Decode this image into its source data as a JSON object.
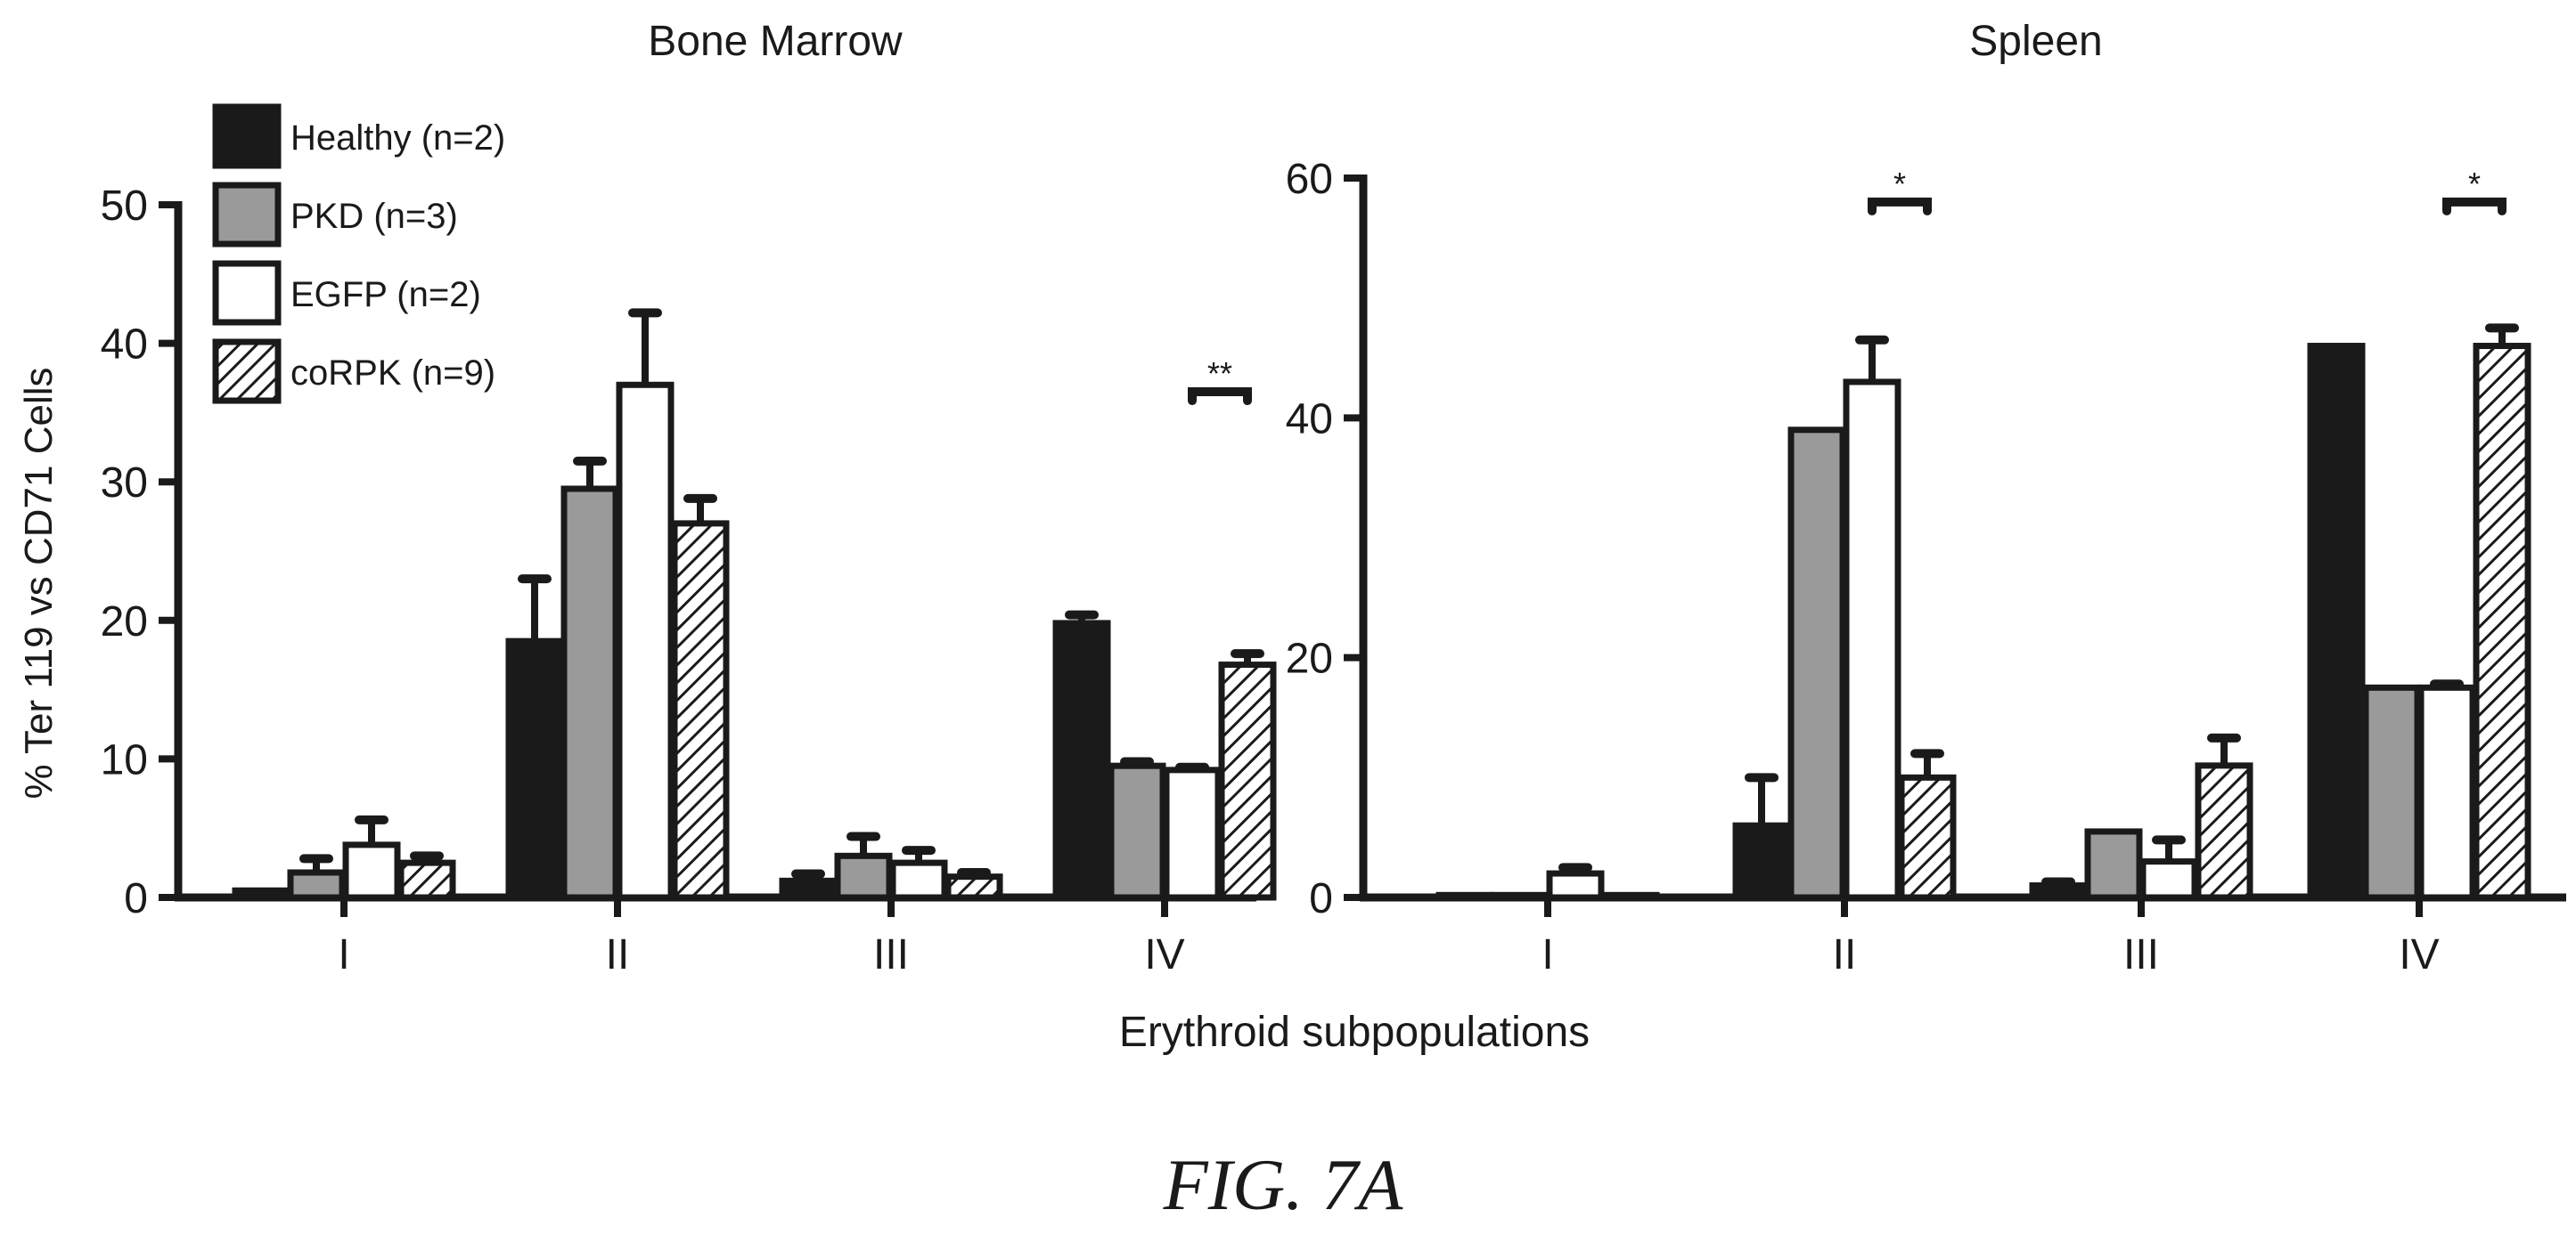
{
  "figure_caption": "FIG. 7A",
  "shared_ylabel": "% Ter 119 vs CD71  Cells",
  "shared_xlabel": "Erythroid subpopulations",
  "legend": [
    {
      "label": "Healthy  (n=2)",
      "fill": "solid-black"
    },
    {
      "label": "PKD  (n=3)",
      "fill": "gray"
    },
    {
      "label": "EGFP  (n=2)",
      "fill": "white"
    },
    {
      "label": "coRPK  (n=9)",
      "fill": "hatched"
    }
  ],
  "colors": {
    "healthy": "#1a1a1a",
    "pkd": "#9a9a9a",
    "egfp": "#ffffff",
    "outline": "#1a1a1a"
  },
  "chart_data": [
    {
      "type": "bar",
      "title": "Bone Marrow",
      "categories": [
        "I",
        "II",
        "III",
        "IV"
      ],
      "ylim": [
        0,
        50
      ],
      "yticks": [
        "0",
        "10",
        "20",
        "30",
        "40",
        "50"
      ],
      "series": [
        {
          "name": "Healthy  (n=2)",
          "values": [
            0.5,
            18.5,
            1.2,
            19.8
          ],
          "errors": [
            0,
            4.5,
            0.5,
            0.6
          ]
        },
        {
          "name": "PKD  (n=3)",
          "values": [
            1.8,
            29.5,
            3.0,
            9.5
          ],
          "errors": [
            1.0,
            2.0,
            1.4,
            0.3
          ]
        },
        {
          "name": "EGFP  (n=2)",
          "values": [
            3.8,
            37.0,
            2.5,
            9.2
          ],
          "errors": [
            1.8,
            5.2,
            0.9,
            0.2
          ]
        },
        {
          "name": "coRPK  (n=9)",
          "values": [
            2.5,
            27.0,
            1.5,
            16.8
          ],
          "errors": [
            0.5,
            1.8,
            0.3,
            0.8
          ]
        }
      ],
      "annotations": [
        {
          "text": "**",
          "category": "IV",
          "series": [
            2,
            3
          ],
          "y": 36.5
        }
      ]
    },
    {
      "type": "bar",
      "title": "Spleen",
      "categories": [
        "I",
        "II",
        "III",
        "IV"
      ],
      "ylim": [
        0,
        60
      ],
      "yticks": [
        "0",
        "20",
        "40",
        "60"
      ],
      "series": [
        {
          "name": "Healthy  (n=2)",
          "values": [
            0.2,
            6.0,
            1.0,
            46.0
          ],
          "errors": [
            0,
            4.0,
            0.3,
            0
          ]
        },
        {
          "name": "PKD  (n=3)",
          "values": [
            0.2,
            39.0,
            5.5,
            17.5
          ],
          "errors": [
            0,
            0,
            0,
            0
          ]
        },
        {
          "name": "EGFP  (n=2)",
          "values": [
            2.0,
            43.0,
            3.0,
            17.5
          ],
          "errors": [
            0.5,
            3.5,
            1.8,
            0.3
          ]
        },
        {
          "name": "coRPK  (n=9)",
          "values": [
            0.2,
            10.0,
            11.0,
            46.0
          ],
          "errors": [
            0,
            2.0,
            2.3,
            1.5
          ]
        }
      ],
      "annotations": [
        {
          "text": "*",
          "category": "II",
          "series": [
            2,
            3
          ],
          "y": 58
        },
        {
          "text": "*",
          "category": "IV",
          "series": [
            2,
            3
          ],
          "y": 58
        }
      ]
    }
  ]
}
